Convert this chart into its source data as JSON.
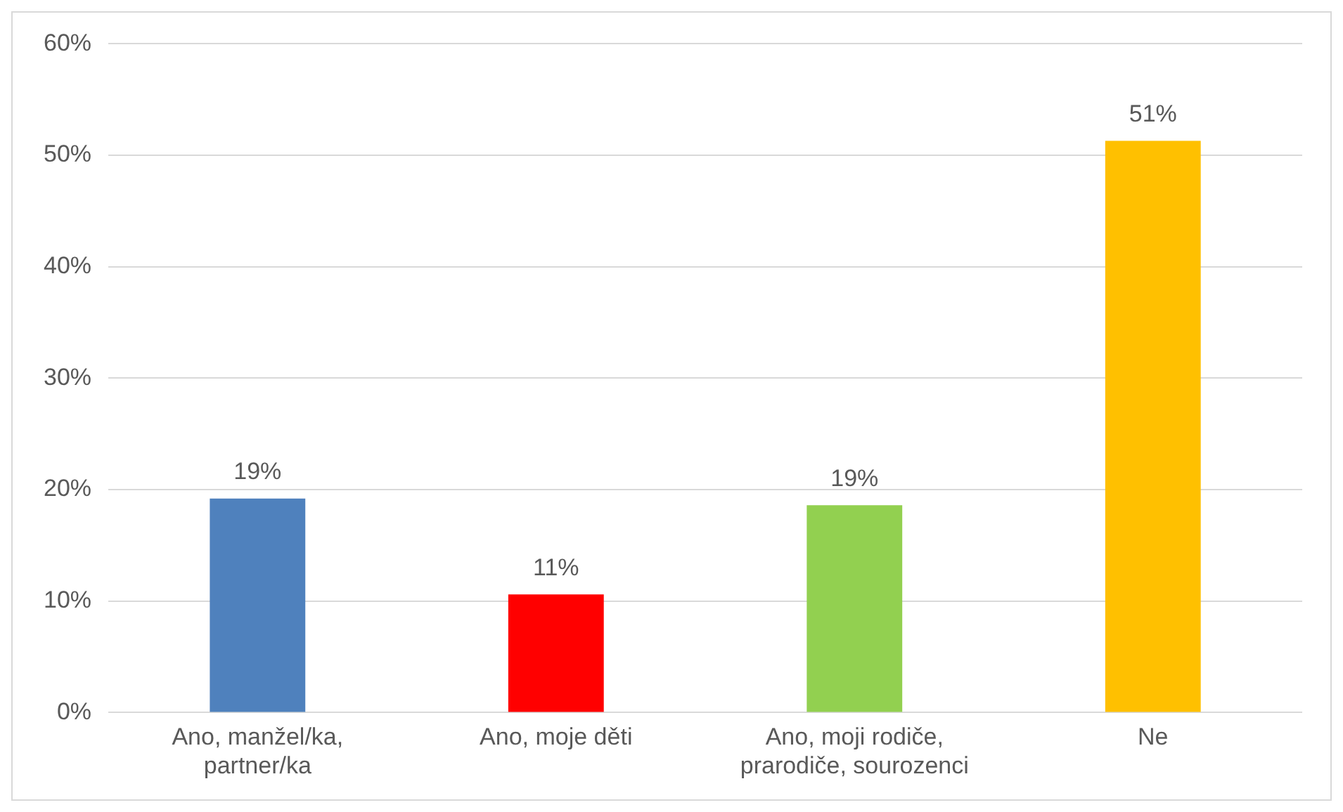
{
  "chart_data": {
    "type": "bar",
    "categories": [
      "Ano, manžel/ka, partner/ka",
      "Ano, moje děti",
      "Ano, moji rodiče, prarodiče, sourozenci",
      "Ne"
    ],
    "values": [
      19.2,
      10.6,
      18.6,
      51.3
    ],
    "colors": [
      "#4f81bd",
      "#ff0000",
      "#92d050",
      "#ffc000"
    ],
    "value_labels": [
      "19%",
      "11%",
      "19%",
      "51%"
    ],
    "ylim": [
      0,
      60
    ],
    "yticks": [
      {
        "value": 0,
        "label": "0%"
      },
      {
        "value": 10,
        "label": "10%"
      },
      {
        "value": 20,
        "label": "20%"
      },
      {
        "value": 30,
        "label": "30%"
      },
      {
        "value": 40,
        "label": "40%"
      },
      {
        "value": 50,
        "label": "50%"
      },
      {
        "value": 60,
        "label": "60%"
      }
    ],
    "grid": "y",
    "legend": false
  }
}
